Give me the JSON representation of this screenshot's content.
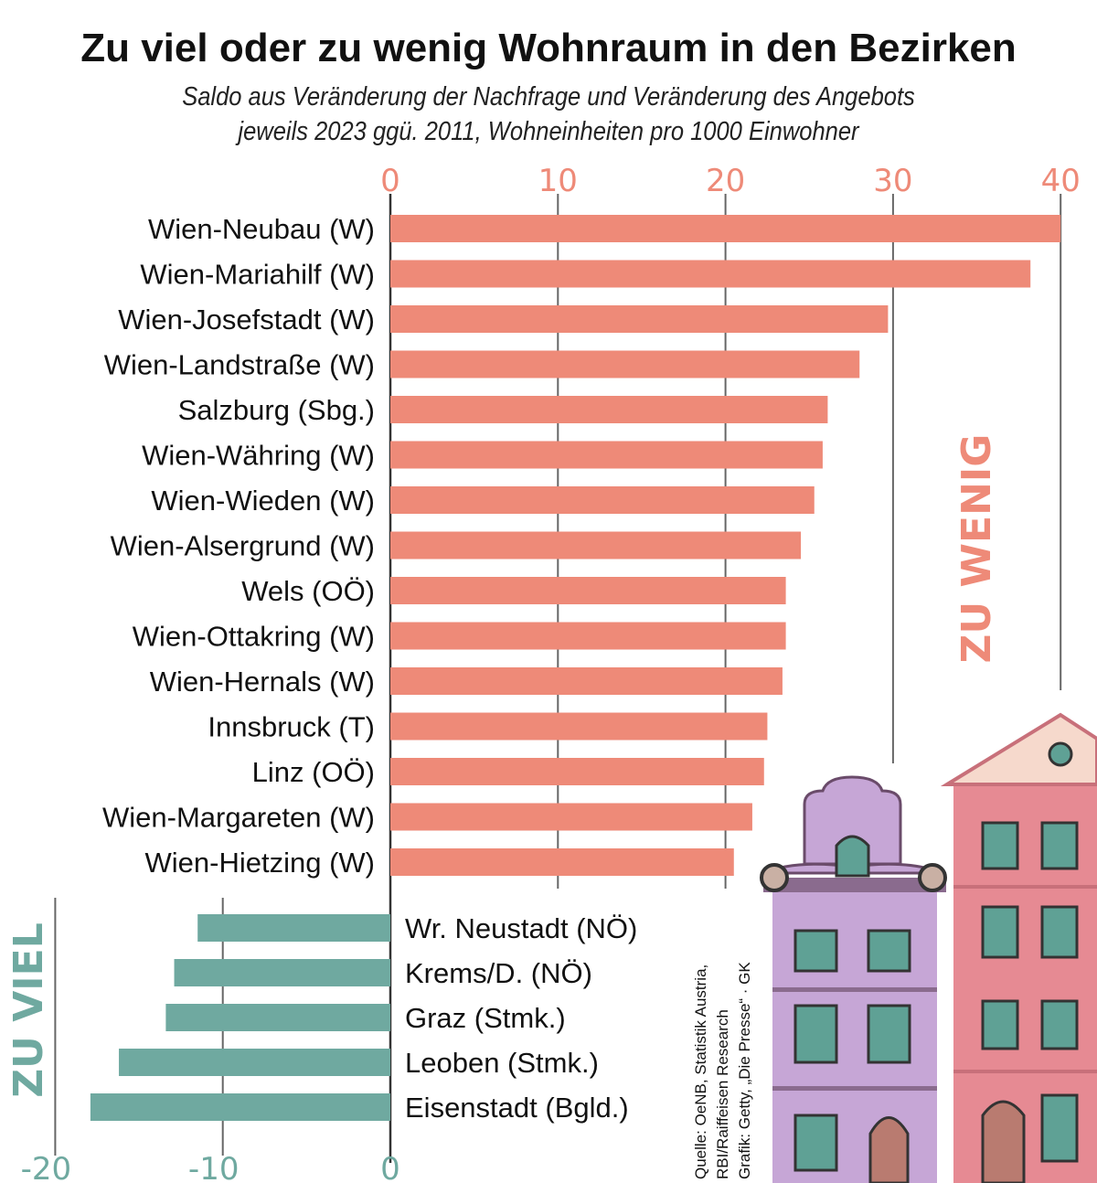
{
  "title": "Zu viel oder zu wenig Wohnraum in den Bezirken",
  "subtitle_line1": "Saldo aus Veränderung der Nachfrage und Veränderung des Angebots",
  "subtitle_line2": "jeweils 2023 ggü. 2011, Wohneinheiten pro 1000 Einwohner",
  "source": {
    "line1": "Quelle: OeNB, Statistik Austria,",
    "line2": "RBI/Raiffeisen Research",
    "line3": "Grafik: Getty, „Die Presse“ · GK"
  },
  "colors": {
    "too_little": "#ee8a78",
    "too_much": "#6fa9a0",
    "grid": "#666666"
  },
  "chart_data": [
    {
      "type": "bar",
      "orientation": "horizontal",
      "annotation": "ZU WENIG",
      "xlim": [
        0,
        40
      ],
      "ticks": [
        0,
        10,
        20,
        30,
        40
      ],
      "grid": true,
      "categories": [
        "Wien-Neubau (W)",
        "Wien-Mariahilf (W)",
        "Wien-Josefstadt (W)",
        "Wien-Landstraße (W)",
        "Salzburg (Sbg.)",
        "Wien-Währing (W)",
        "Wien-Wieden (W)",
        "Wien-Alsergrund (W)",
        "Wels (OÖ)",
        "Wien-Ottakring (W)",
        "Wien-Hernals (W)",
        "Innsbruck (T)",
        "Linz (OÖ)",
        "Wien-Margareten (W)",
        "Wien-Hietzing (W)"
      ],
      "values": [
        40.0,
        38.2,
        29.7,
        28.0,
        26.1,
        25.8,
        25.3,
        24.5,
        23.6,
        23.6,
        23.4,
        22.5,
        22.3,
        21.6,
        20.5
      ]
    },
    {
      "type": "bar",
      "orientation": "horizontal",
      "annotation": "ZU VIEL",
      "xlim": [
        -20,
        0
      ],
      "ticks": [
        -20,
        -10,
        0
      ],
      "grid": true,
      "categories": [
        "Wr. Neustadt (NÖ)",
        "Krems/D. (NÖ)",
        "Graz (Stmk.)",
        "Leoben (Stmk.)",
        "Eisenstadt (Bgld.)"
      ],
      "values": [
        -11.5,
        -12.9,
        -13.4,
        -16.2,
        -17.9
      ]
    }
  ]
}
